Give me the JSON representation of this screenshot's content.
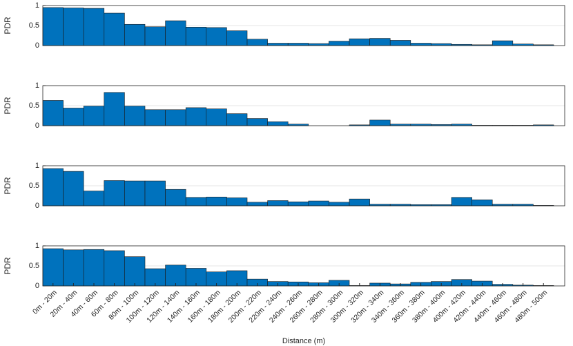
{
  "chart_data": [
    {
      "type": "bar",
      "ylabel": "PDR",
      "color": "#0072bd",
      "ylim": [
        0,
        1
      ],
      "yticks": [
        0,
        0.5,
        1
      ],
      "grid": true,
      "values": [
        0.95,
        0.94,
        0.93,
        0.81,
        0.53,
        0.47,
        0.62,
        0.46,
        0.45,
        0.37,
        0.16,
        0.06,
        0.06,
        0.05,
        0.11,
        0.17,
        0.18,
        0.13,
        0.06,
        0.05,
        0.03,
        0.02,
        0.12,
        0.04,
        0.02
      ]
    },
    {
      "type": "bar",
      "ylabel": "PDR",
      "color": "#0072bd",
      "ylim": [
        0,
        1
      ],
      "yticks": [
        0,
        0.5,
        1
      ],
      "grid": true,
      "values": [
        0.63,
        0.44,
        0.49,
        0.83,
        0.49,
        0.4,
        0.4,
        0.45,
        0.42,
        0.3,
        0.18,
        0.1,
        0.04,
        0,
        0,
        0.02,
        0.14,
        0.04,
        0.04,
        0.03,
        0.04,
        0.01,
        0.01,
        0.01,
        0.02
      ]
    },
    {
      "type": "bar",
      "ylabel": "PDR",
      "color": "#0072bd",
      "ylim": [
        0,
        1
      ],
      "yticks": [
        0,
        0.5,
        1
      ],
      "grid": true,
      "values": [
        0.93,
        0.86,
        0.37,
        0.63,
        0.62,
        0.62,
        0.41,
        0.21,
        0.22,
        0.2,
        0.09,
        0.13,
        0.1,
        0.12,
        0.09,
        0.17,
        0.04,
        0.04,
        0.03,
        0.03,
        0.21,
        0.15,
        0.04,
        0.04,
        0.01
      ]
    },
    {
      "type": "bar",
      "ylabel": "PDR",
      "xlabel": "Distance (m)",
      "color": "#0072bd",
      "ylim": [
        0,
        1
      ],
      "yticks": [
        0,
        0.5,
        1
      ],
      "grid": true,
      "categories": [
        "0m - 20m",
        "20m - 40m",
        "40m - 60m",
        "60m - 80m",
        "80m - 100m",
        "100m - 120m",
        "120m - 140m",
        "140m - 160m",
        "160m - 180m",
        "180m - 200m",
        "200m - 220m",
        "220m - 240m",
        "240m - 260m",
        "260m - 280m",
        "280m - 300m",
        "300m - 320m",
        "320m - 340m",
        "340m - 360m",
        "360m - 380m",
        "380m - 400m",
        "400m - 420m",
        "420m - 440m",
        "440m - 460m",
        "460m - 480m",
        "480m - 500m"
      ],
      "values": [
        0.93,
        0.9,
        0.91,
        0.88,
        0.73,
        0.43,
        0.52,
        0.44,
        0.35,
        0.38,
        0.17,
        0.11,
        0.1,
        0.08,
        0.14,
        0.01,
        0.07,
        0.05,
        0.09,
        0.11,
        0.16,
        0.12,
        0.04,
        0.02,
        0.01
      ]
    }
  ]
}
